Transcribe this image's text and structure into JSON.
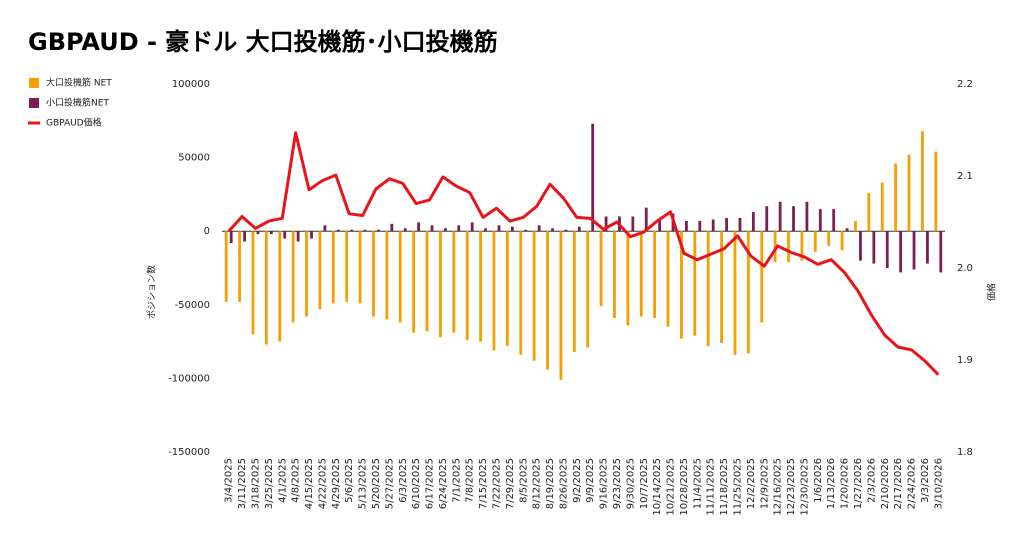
{
  "chart_data": {
    "type": "bar_line",
    "title": "GBPAUD - 豪ドル 大口投機筋･小口投機筋",
    "y_label": "ポジション数",
    "y2_label": "価格",
    "categories": [
      "3/4/2025",
      "3/11/2025",
      "3/18/2025",
      "3/25/2025",
      "4/1/2025",
      "4/8/2025",
      "4/15/2025",
      "4/22/2025",
      "4/29/2025",
      "5/6/2025",
      "5/13/2025",
      "5/20/2025",
      "5/27/2025",
      "6/3/2025",
      "6/10/2025",
      "6/17/2025",
      "6/24/2025",
      "7/1/2025",
      "7/8/2025",
      "7/15/2025",
      "7/22/2025",
      "7/29/2025",
      "8/5/2025",
      "8/12/2025",
      "8/19/2025",
      "8/26/2025",
      "9/2/2025",
      "9/9/2025",
      "9/16/2025",
      "9/23/2025",
      "9/30/2025",
      "10/7/2025",
      "10/14/2025",
      "10/21/2025",
      "10/28/2025",
      "11/4/2025",
      "11/11/2025",
      "11/18/2025",
      "11/25/2025",
      "12/2/2025",
      "12/9/2025",
      "12/16/2025",
      "12/23/2025",
      "12/30/2025",
      "1/6/2026",
      "1/13/2026",
      "1/20/2026",
      "1/27/2026",
      "2/3/2026",
      "2/10/2026",
      "2/17/2026",
      "2/24/2026",
      "3/3/2026",
      "3/10/2026"
    ],
    "series": [
      {
        "name": "大口投機筋  NET",
        "type": "bar",
        "color": "#f5a000",
        "values": [
          -48000,
          -48000,
          -70000,
          -77000,
          -75000,
          -62000,
          -58000,
          -53000,
          -49000,
          -48000,
          -49000,
          -58000,
          -60000,
          -62000,
          -69000,
          -68000,
          -72000,
          -69000,
          -74000,
          -75000,
          -81000,
          -78000,
          -84000,
          -88000,
          -94000,
          -101000,
          -82000,
          -79000,
          -51000,
          -59000,
          -64000,
          -58000,
          -59000,
          -65000,
          -73000,
          -71000,
          -78000,
          -76000,
          -84000,
          -83000,
          -62000,
          -21000,
          -21000,
          -20000,
          -14000,
          -10000,
          -13000,
          7000,
          26000,
          33000,
          46000,
          52000,
          68000,
          54000
        ]
      },
      {
        "name": "小口投機筋NET",
        "type": "bar",
        "color": "#7a1f4f",
        "values": [
          -8000,
          -7000,
          -2000,
          -2000,
          -5000,
          -7000,
          -5000,
          4000,
          1000,
          1000,
          1000,
          1000,
          5000,
          2000,
          6000,
          4000,
          2000,
          4000,
          6000,
          2000,
          4000,
          3000,
          1000,
          4000,
          2000,
          1000,
          3000,
          73000,
          10000,
          10000,
          10000,
          16000,
          8000,
          12000,
          7000,
          7000,
          8000,
          9000,
          9000,
          13000,
          17000,
          20000,
          17000,
          20000,
          15000,
          15000,
          2000,
          -20000,
          -22000,
          -25000,
          -28000,
          -26000,
          -22000,
          -28000
        ]
      },
      {
        "name": "GBPAUD価格",
        "type": "line",
        "axis": "y2",
        "color": "#e8141a",
        "values": [
          2.04,
          2.056,
          2.043,
          2.051,
          2.054,
          2.147,
          2.085,
          2.095,
          2.101,
          2.059,
          2.057,
          2.086,
          2.097,
          2.092,
          2.07,
          2.074,
          2.099,
          2.089,
          2.082,
          2.055,
          2.065,
          2.051,
          2.055,
          2.067,
          2.091,
          2.076,
          2.055,
          2.054,
          2.042,
          2.05,
          2.034,
          2.039,
          2.051,
          2.061,
          2.016,
          2.009,
          2.015,
          2.021,
          2.035,
          2.013,
          2.002,
          2.024,
          2.017,
          2.012,
          2.004,
          2.009,
          1.995,
          1.975,
          1.949,
          1.927,
          1.914,
          1.911,
          1.899,
          1.884
        ]
      }
    ],
    "ylim": [
      -150000,
      100000
    ],
    "yticks": [
      100000,
      50000,
      0,
      -50000,
      -100000,
      -150000
    ],
    "y2lim": [
      1.8,
      2.2
    ],
    "y2ticks": [
      2.2,
      2.1,
      {
        "value": 2,
        "label": "2.0"
      },
      1.9,
      1.8
    ],
    "legend": "left",
    "grid": false
  }
}
